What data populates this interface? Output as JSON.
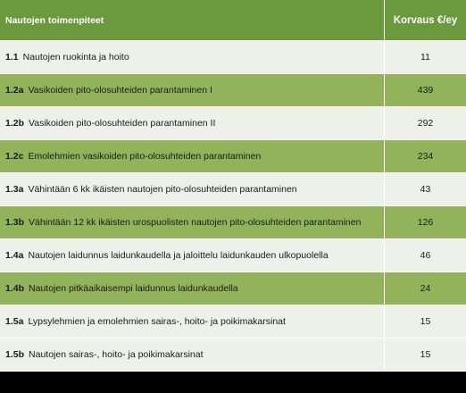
{
  "header": {
    "name": "Nautojen toimenpiteet",
    "value": "Korvaus €/ey"
  },
  "rows": [
    {
      "code": "1.1",
      "label": "Nautojen ruokinta ja hoito",
      "value": "11"
    },
    {
      "code": "1.2a",
      "label": "Vasikoiden pito-olosuhteiden parantaminen I",
      "value": "439"
    },
    {
      "code": "1.2b",
      "label": "Vasikoiden pito-olosuhteiden parantaminen II",
      "value": "292"
    },
    {
      "code": "1.2c",
      "label": "Emolehmien vasikoiden pito-olosuhteiden parantaminen",
      "value": "234"
    },
    {
      "code": "1.3a",
      "label": "Vähintään 6 kk ikäisten nautojen pito-olosuhteiden parantaminen",
      "value": "43"
    },
    {
      "code": "1.3b",
      "label": "Vähintään 12 kk ikäisten urospuolisten nautojen pito-olosuhteiden parantaminen",
      "value": "126"
    },
    {
      "code": "1.4a",
      "label": "Nautojen laidunnus laidunkaudella ja jaloittelu laidunkauden ulkopuolella",
      "value": "46"
    },
    {
      "code": "1.4b",
      "label": "Nautojen pitkäaikaisempi laidunnus laidunkaudella",
      "value": "24"
    },
    {
      "code": "1.5a",
      "label": "Lypsylehmien ja emolehmien sairas-, hoito- ja poikimakarsinat",
      "value": "15"
    },
    {
      "code": "1.5b",
      "label": "Nautojen sairas-, hoito- ja poikimakarsinat",
      "value": "15"
    }
  ]
}
